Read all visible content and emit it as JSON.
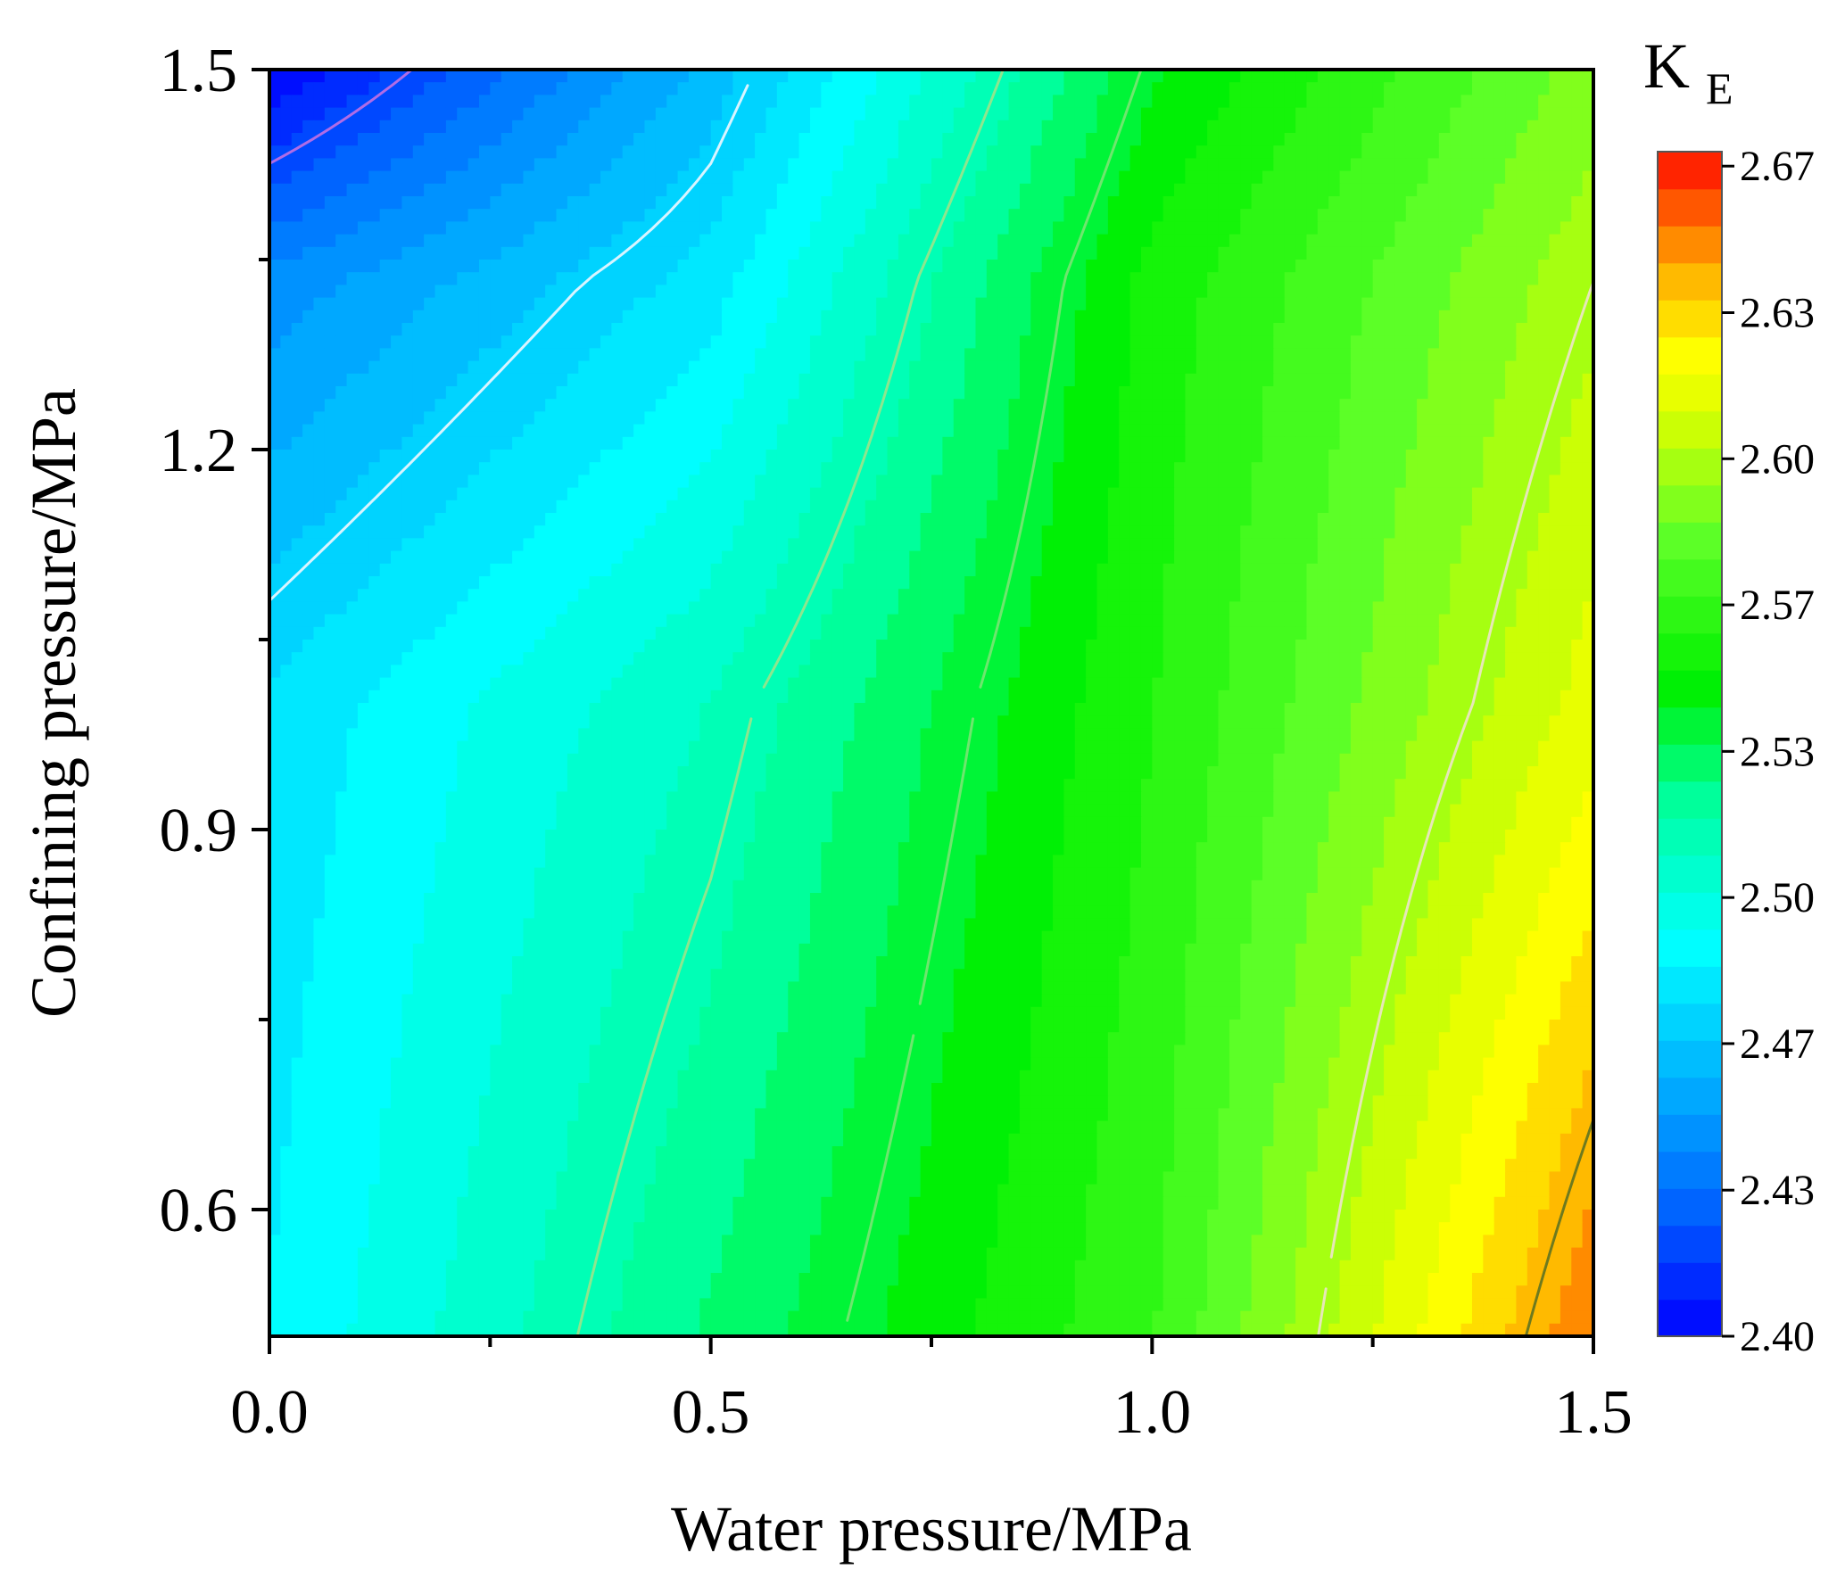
{
  "chart_data": {
    "type": "contour",
    "title": "",
    "xlabel": "Water pressure/MPa",
    "ylabel": "Confining pressure/MPa",
    "xlim": [
      0.0,
      1.5
    ],
    "ylim": [
      0.5,
      1.5
    ],
    "x_ticks": [
      "0.0",
      "0.5",
      "1.0",
      "1.5"
    ],
    "x_tick_values": [
      0.0,
      0.5,
      1.0,
      1.5
    ],
    "x_minor_ticks": [
      0.25,
      0.75,
      1.25
    ],
    "y_ticks": [
      "0.6",
      "0.9",
      "1.2",
      "1.5"
    ],
    "y_tick_values": [
      0.6,
      0.9,
      1.2,
      1.5
    ],
    "y_minor_ticks": [
      0.75,
      1.05,
      1.35
    ],
    "grid": false,
    "grid_x": [
      0.0,
      0.5,
      1.0,
      1.5
    ],
    "grid_y": [
      0.5,
      1.0,
      1.333,
      1.5
    ],
    "z_values": [
      [
        2.485,
        2.528,
        2.568,
        2.653
      ],
      [
        2.478,
        2.51,
        2.56,
        2.615
      ],
      [
        2.445,
        2.48,
        2.555,
        2.6
      ],
      [
        2.4,
        2.462,
        2.542,
        2.59
      ]
    ],
    "colorbar": {
      "label_main": "K",
      "label_sub": "E",
      "min": 2.4,
      "max": 2.67,
      "tick_labels": [
        "2.40",
        "2.43",
        "2.47",
        "2.50",
        "2.53",
        "2.57",
        "2.60",
        "2.63",
        "2.67"
      ],
      "tick_values": [
        2.4,
        2.4333,
        2.4667,
        2.5,
        2.5333,
        2.5667,
        2.6,
        2.6333,
        2.6667
      ],
      "levels": 32
    },
    "contour_lines": [
      {
        "level": 2.42,
        "color": "#b06ce6"
      },
      {
        "level": 2.47,
        "color": "#d8f4ff"
      },
      {
        "level": 2.515,
        "color": "#8ee68e"
      },
      {
        "level": 2.54,
        "color": "#6ee66e"
      },
      {
        "level": 2.6,
        "color": "#e6e6b8"
      },
      {
        "level": 2.64,
        "color": "#6e7a1e"
      }
    ]
  }
}
